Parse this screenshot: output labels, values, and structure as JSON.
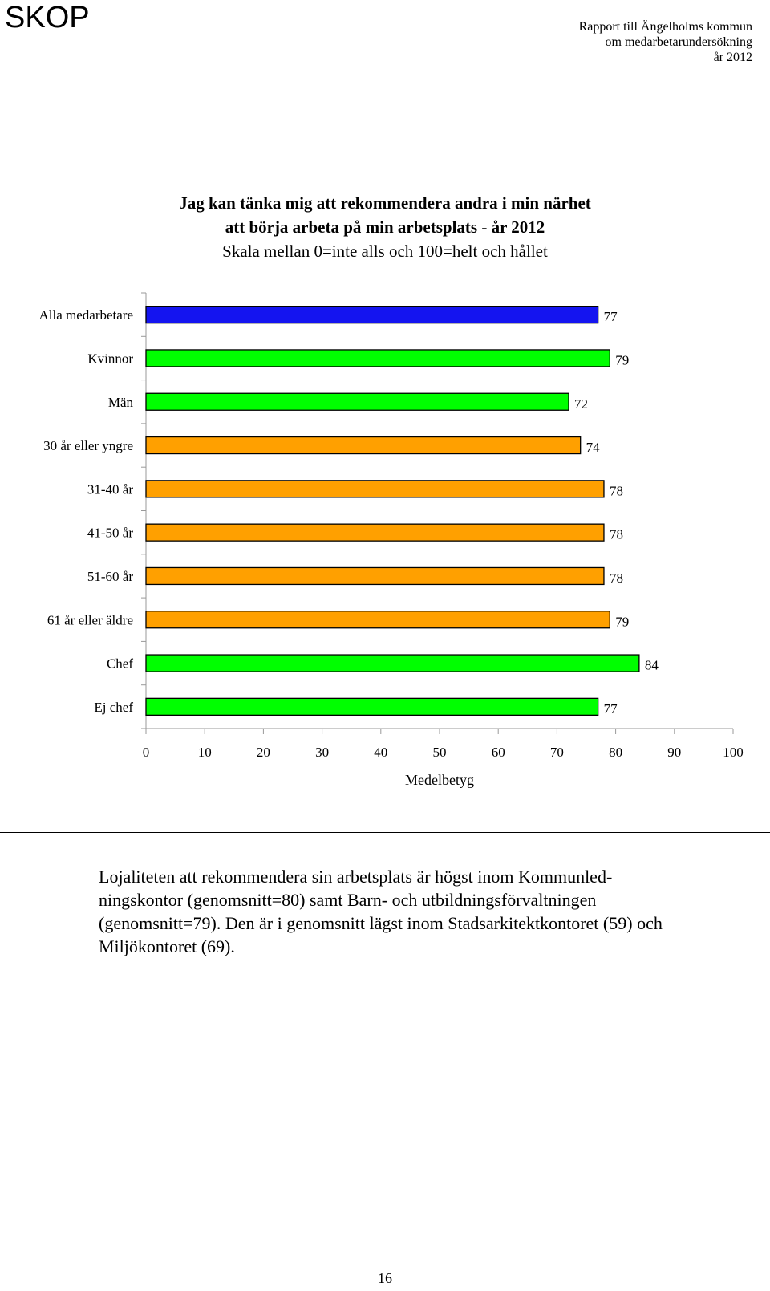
{
  "header": {
    "logo": "SKOP",
    "report_lines": [
      "Rapport till Ängelholms kommun",
      "om medarbetarundersökning",
      "år 2012"
    ]
  },
  "chart_title": {
    "line1": "Jag kan tänka mig att rekommendera andra i min närhet",
    "line2": "att börja arbeta på min arbetsplats - år 2012",
    "line3": "Skala mellan 0=inte alls och 100=helt och hållet"
  },
  "chart_data": {
    "type": "bar",
    "orientation": "horizontal",
    "categories": [
      "Alla medarbetare",
      "Kvinnor",
      "Män",
      "30 år eller yngre",
      "31-40 år",
      "41-50 år",
      "51-60 år",
      "61 år eller äldre",
      "Chef",
      "Ej chef"
    ],
    "values": [
      77,
      79,
      72,
      74,
      78,
      78,
      78,
      79,
      84,
      77
    ],
    "colors": [
      "#1414f0",
      "#00ff00",
      "#00ff00",
      "#ffa000",
      "#ffa000",
      "#ffa000",
      "#ffa000",
      "#ffa000",
      "#00ff00",
      "#00ff00"
    ],
    "xlabel": "Medelbetyg",
    "xlim": [
      0,
      100
    ],
    "xticks": [
      "0",
      "10",
      "20",
      "30",
      "40",
      "50",
      "60",
      "70",
      "80",
      "90",
      "100"
    ],
    "grid": false,
    "data_labels": true
  },
  "paragraph": {
    "lines": [
      "Lojaliteten att rekommendera sin arbetsplats är högst inom Kommunled-",
      "ningskontor (genomsnitt=80) samt Barn- och utbildningsförvaltningen",
      "(genomsnitt=79). Den är i genomsnitt lägst inom Stadsarkitektkontoret (59) och",
      "Miljökontoret (69)."
    ]
  },
  "page_number": "16"
}
